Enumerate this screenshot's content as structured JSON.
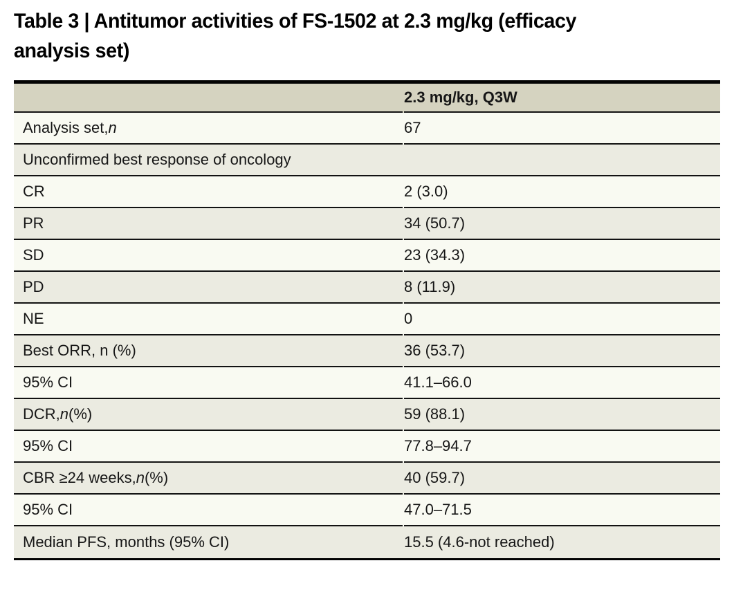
{
  "title": {
    "full": "Table 3 | Antitumor activities of FS-1502 at 2.3 mg/kg (efficacy analysis set)",
    "line1": "Table 3 | Antitumor activities of FS-1502 at 2.3 mg/kg (efficacy",
    "line2": "analysis set)"
  },
  "table": {
    "column_header": "2.3 mg/kg, Q3W",
    "rows": [
      {
        "label": {
          "prefix": "Analysis set, ",
          "italic": "n"
        },
        "value": "67"
      },
      {
        "label": {
          "prefix": "Unconfirmed best response of oncology"
        },
        "value": ""
      },
      {
        "label": {
          "prefix": "CR"
        },
        "value": "2 (3.0)"
      },
      {
        "label": {
          "prefix": "PR"
        },
        "value": "34 (50.7)"
      },
      {
        "label": {
          "prefix": "SD"
        },
        "value": "23 (34.3)"
      },
      {
        "label": {
          "prefix": "PD"
        },
        "value": "8 (11.9)"
      },
      {
        "label": {
          "prefix": "NE"
        },
        "value": "0"
      },
      {
        "label": {
          "prefix": "Best ORR, n (%)"
        },
        "value": "36 (53.7)"
      },
      {
        "label": {
          "prefix": "95% CI"
        },
        "value": "41.1–66.0"
      },
      {
        "label": {
          "prefix": "DCR, ",
          "italic": "n",
          "suffix": " (%)"
        },
        "value": "59 (88.1)"
      },
      {
        "label": {
          "prefix": "95% CI"
        },
        "value": "77.8–94.7"
      },
      {
        "label": {
          "prefix": "CBR ≥24 weeks, ",
          "italic": "n",
          "suffix": " (%)"
        },
        "value": "40 (59.7)"
      },
      {
        "label": {
          "prefix": "95% CI"
        },
        "value": "47.0–71.5"
      },
      {
        "label": {
          "prefix": "Median PFS, months (95% CI)"
        },
        "value": "15.5 (4.6-not reached)"
      }
    ]
  },
  "colors": {
    "header_bg": "#d5d3c0",
    "row_beige": "#ebebe1",
    "row_light": "#f9faf2",
    "rule": "#121212",
    "title_text": "#010101"
  }
}
